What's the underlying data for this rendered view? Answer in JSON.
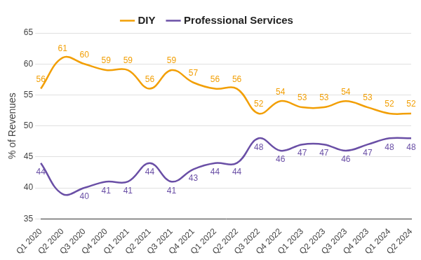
{
  "chart_data": {
    "type": "line",
    "categories": [
      "Q1 2020",
      "Q2 2020",
      "Q3 2020",
      "Q4 2020",
      "Q1 2021",
      "Q2 2021",
      "Q3 2021",
      "Q4 2021",
      "Q1 2022",
      "Q2 2022",
      "Q3 2022",
      "Q4 2022",
      "Q1 2023",
      "Q2 2023",
      "Q3 2023",
      "Q4 2023",
      "Q1 2024",
      "Q2 2024"
    ],
    "series": [
      {
        "name": "DIY",
        "color": "#f29f05",
        "values": [
          56,
          61,
          60,
          59,
          59,
          56,
          59,
          57,
          56,
          56,
          52,
          54,
          53,
          53,
          54,
          53,
          52,
          52
        ]
      },
      {
        "name": "Professional Services",
        "color": "#6a4fa6",
        "values": [
          44,
          39,
          40,
          41,
          41,
          44,
          41,
          43,
          44,
          44,
          48,
          46,
          47,
          47,
          46,
          47,
          48,
          48
        ],
        "value_labels": [
          "44",
          null,
          "40",
          "41",
          "41",
          "44",
          "41",
          "43",
          "44",
          "44",
          "48",
          "46",
          "47",
          "47",
          "46",
          "47",
          "48",
          "48"
        ]
      }
    ],
    "y_label": "% of Revenues",
    "ylim": [
      35,
      65
    ],
    "yticks": [
      35,
      40,
      45,
      50,
      55,
      60,
      65
    ],
    "grid": true,
    "legend": "top",
    "data_labels": true
  }
}
